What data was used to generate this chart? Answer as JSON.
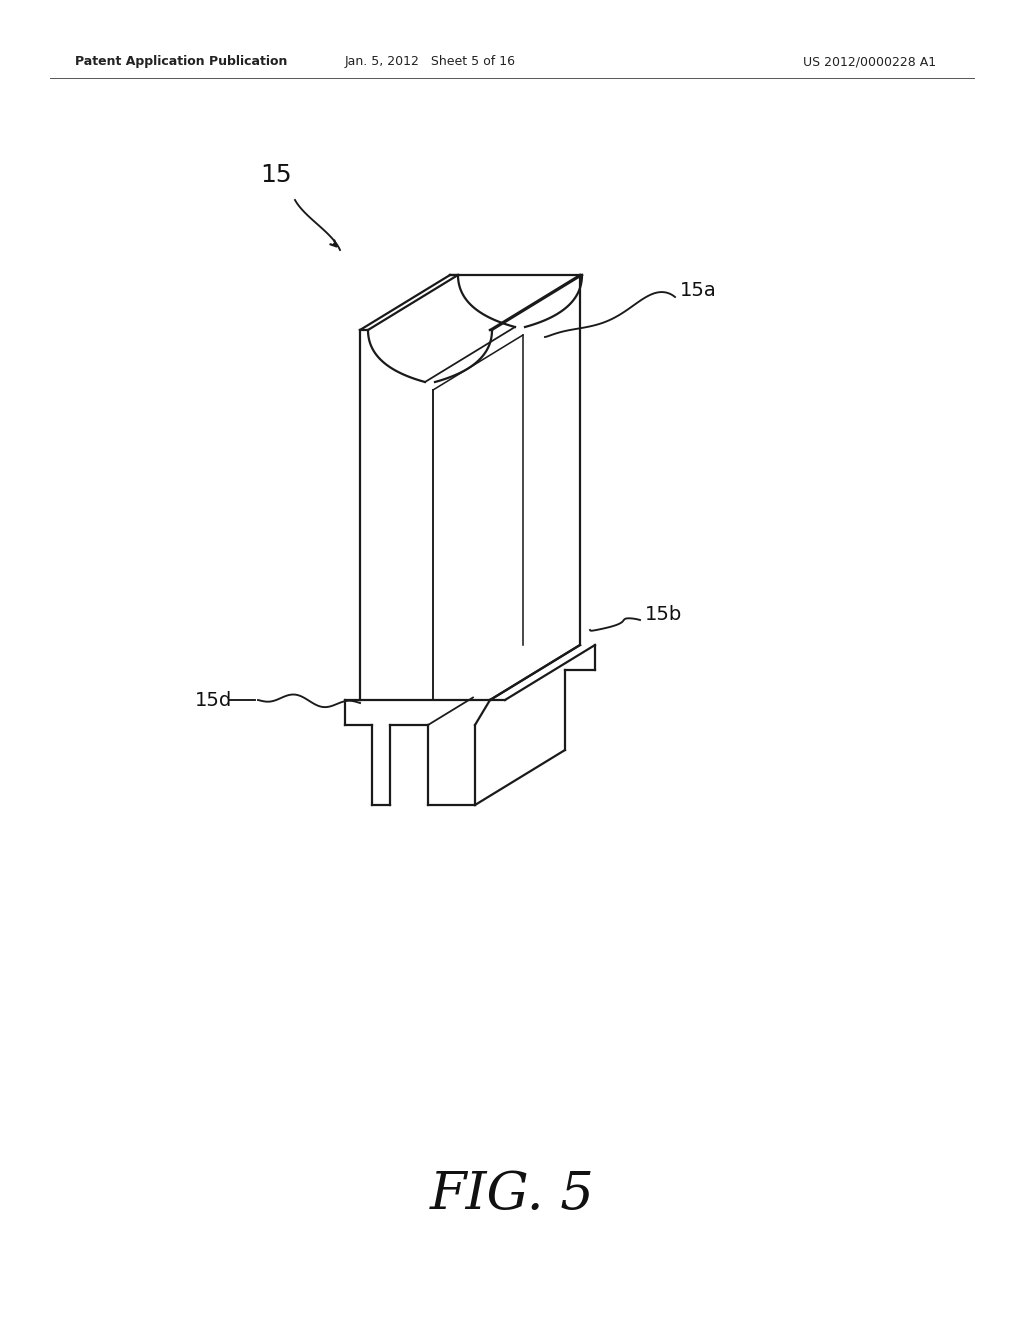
{
  "bg_color": "#ffffff",
  "line_color": "#1a1a1a",
  "line_width": 1.6,
  "header_left": "Patent Application Publication",
  "header_mid": "Jan. 5, 2012   Sheet 5 of 16",
  "header_right": "US 2012/0000228 A1",
  "figure_label": "FIG. 5",
  "label_15": "15",
  "label_15a": "15a",
  "label_15b": "15b",
  "label_15d": "15d",
  "fig_label_fontsize": 38,
  "annotation_fontsize": 14
}
